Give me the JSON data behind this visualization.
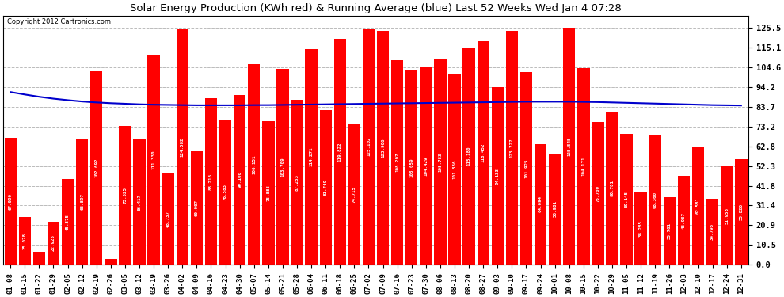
{
  "title": "Solar Energy Production (KWh red) & Running Average (blue) Last 52 Weeks Wed Jan 4 07:28",
  "copyright": "Copyright 2012 Cartronics.com",
  "bar_color": "#FF0000",
  "line_color": "#0000CC",
  "background_color": "#FFFFFF",
  "grid_color": "#BBBBBB",
  "yticks": [
    0.0,
    10.5,
    20.9,
    31.4,
    41.8,
    52.3,
    62.8,
    73.2,
    83.7,
    94.2,
    104.6,
    115.1,
    125.5
  ],
  "ylim": [
    0,
    132
  ],
  "categories": [
    "01-08",
    "01-15",
    "01-22",
    "01-29",
    "02-05",
    "02-12",
    "02-19",
    "02-26",
    "03-05",
    "03-12",
    "03-19",
    "03-26",
    "04-02",
    "04-09",
    "04-16",
    "04-23",
    "04-30",
    "05-07",
    "05-14",
    "05-21",
    "05-28",
    "06-04",
    "06-11",
    "06-18",
    "06-25",
    "07-02",
    "07-09",
    "07-16",
    "07-23",
    "07-30",
    "08-06",
    "08-13",
    "08-20",
    "08-27",
    "09-03",
    "09-10",
    "09-17",
    "09-24",
    "10-01",
    "10-08",
    "10-15",
    "10-22",
    "10-29",
    "11-05",
    "11-12",
    "11-19",
    "11-26",
    "12-03",
    "12-10",
    "12-17",
    "12-24",
    "12-31"
  ],
  "values": [
    67.09,
    25.078,
    7.009,
    22.925,
    45.375,
    66.897,
    102.692,
    3.152,
    73.525,
    66.417,
    111.33,
    48.737,
    124.582,
    60.007,
    88.216,
    76.583,
    90.1,
    106.151,
    75.885,
    103.709,
    87.233,
    114.271,
    81.749,
    119.822,
    74.715,
    125.102,
    123.906,
    108.297,
    103.059,
    104.429,
    108.783,
    101.336,
    115.18,
    118.452,
    94.133,
    123.727,
    101.925,
    64.094,
    58.981,
    125.545,
    104.171,
    75.7,
    80.781,
    69.145,
    38.285,
    68.36,
    35.761,
    46.937,
    62.581,
    34.796,
    51.958,
    55.826
  ],
  "running_avg": [
    91.5,
    90.2,
    89.0,
    88.0,
    87.2,
    86.5,
    86.0,
    85.6,
    85.3,
    85.0,
    84.8,
    84.7,
    84.6,
    84.5,
    84.5,
    84.5,
    84.5,
    84.6,
    84.6,
    84.7,
    84.8,
    84.9,
    85.0,
    85.1,
    85.2,
    85.3,
    85.4,
    85.5,
    85.6,
    85.7,
    85.8,
    85.9,
    86.0,
    86.1,
    86.2,
    86.3,
    86.4,
    86.4,
    86.4,
    86.4,
    86.3,
    86.2,
    86.0,
    85.8,
    85.6,
    85.4,
    85.2,
    85.0,
    84.8,
    84.6,
    84.5,
    84.4
  ]
}
